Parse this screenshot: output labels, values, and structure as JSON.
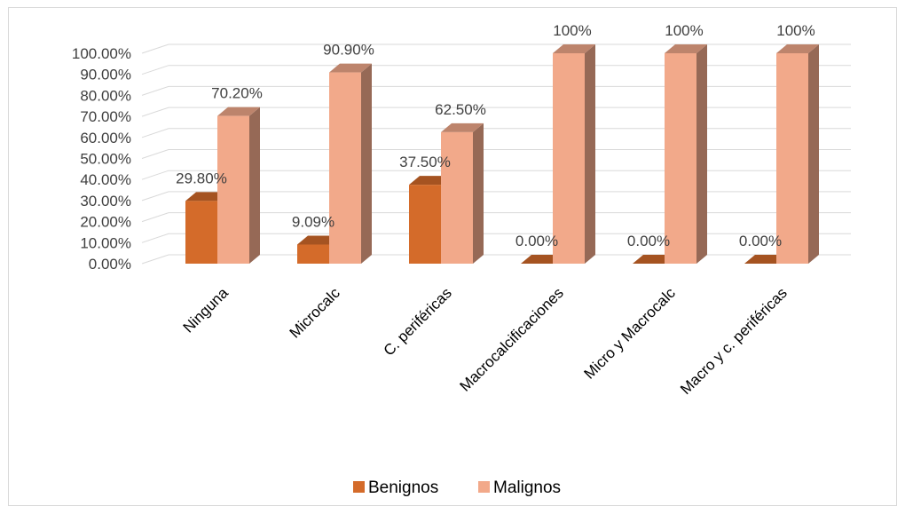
{
  "chart_data": {
    "type": "bar",
    "categories": [
      "Ninguna",
      "Microcalc",
      "C. periféricas",
      "Macrocalcificaciones",
      "Micro y Macrocalc",
      "Macro y c. periféricas"
    ],
    "series": [
      {
        "name": "Benignos",
        "values": [
          29.8,
          9.09,
          37.5,
          0,
          0,
          0
        ],
        "labels": [
          "29.80%",
          "9.09%",
          "37.50%",
          "0.00%",
          "0.00%",
          "0.00%"
        ],
        "color": "#d46b2a"
      },
      {
        "name": "Malignos",
        "values": [
          70.2,
          90.9,
          62.5,
          100,
          100,
          100
        ],
        "labels": [
          "70.20%",
          "90.90%",
          "62.50%",
          "100%",
          "100%",
          "100%"
        ],
        "color": "#f2a98a"
      }
    ],
    "y_ticks": [
      "0.00%",
      "10.00%",
      "20.00%",
      "30.00%",
      "40.00%",
      "50.00%",
      "60.00%",
      "70.00%",
      "80.00%",
      "90.00%",
      "100.00%"
    ],
    "ylim": [
      0,
      100
    ],
    "grid": true,
    "legend": "bottom",
    "style": "3d-column"
  }
}
